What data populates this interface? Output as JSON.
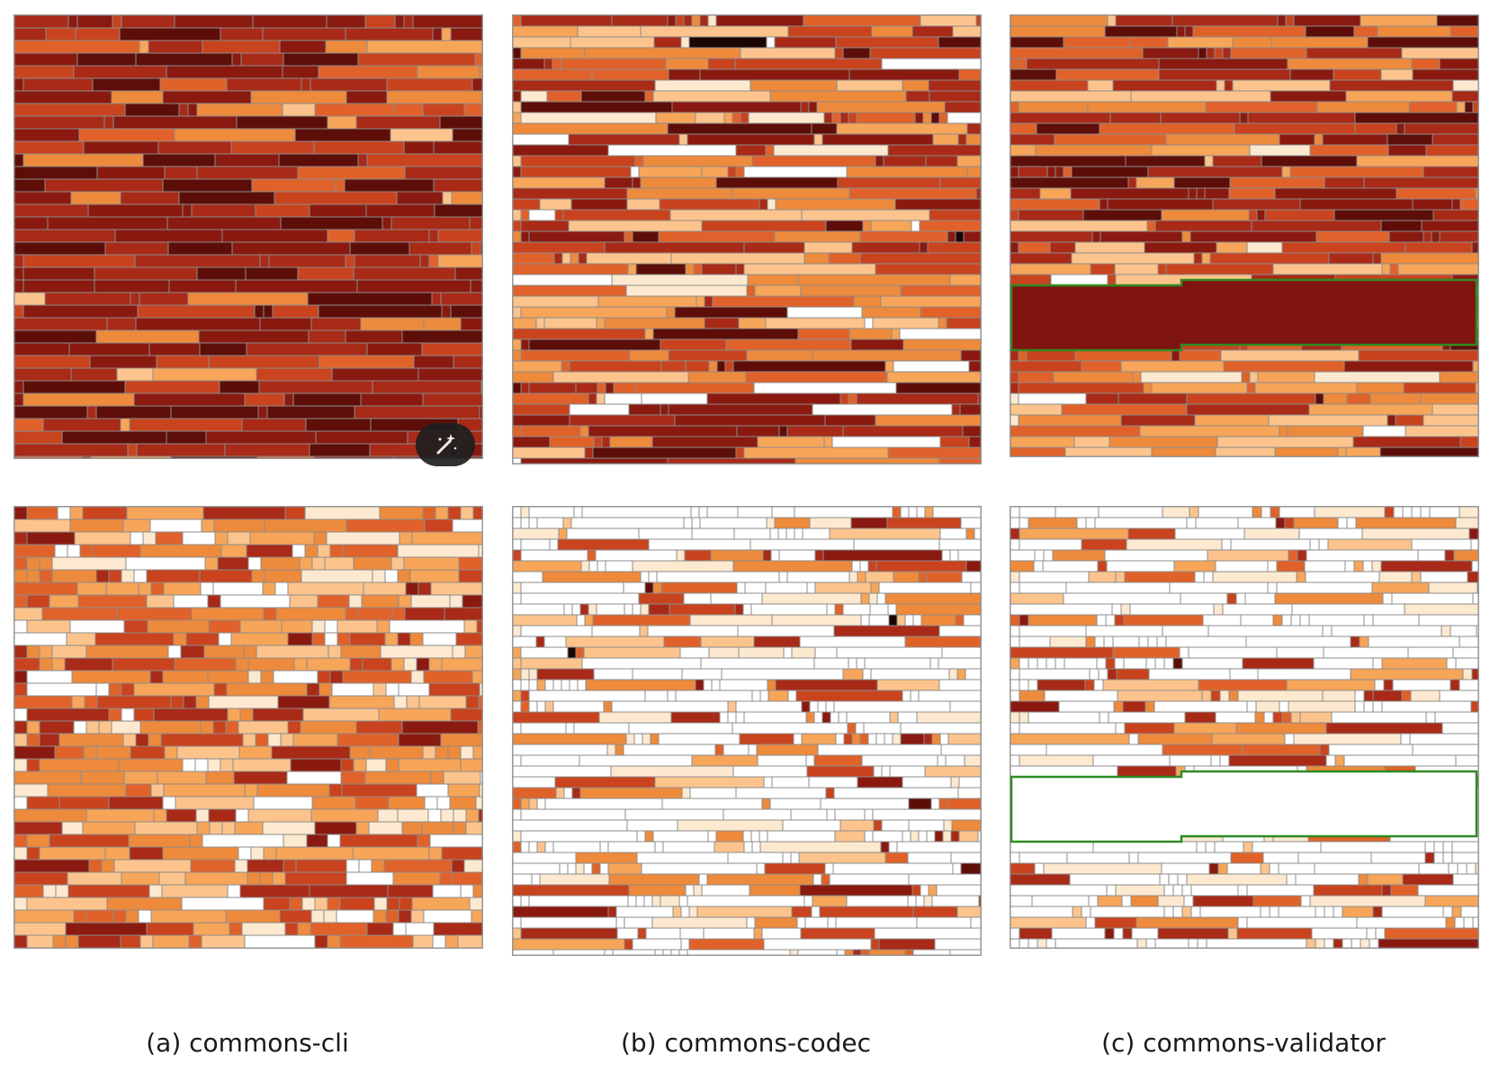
{
  "figure": {
    "captions": [
      "(a) commons-cli",
      "(b) commons-codec",
      "(c) commons-validator"
    ],
    "icons": [
      "magic-wand-icon"
    ],
    "colors": {
      "palette": [
        "#ffffff",
        "#fde9cf",
        "#fcc48c",
        "#f7a559",
        "#ee8a3c",
        "#e0622a",
        "#c9431e",
        "#a82a17",
        "#8a1a10",
        "#5e0e08",
        "#1c0604"
      ],
      "grid_line": "#8c8c8c",
      "highlight_outline": "#2e8b22"
    }
  }
}
